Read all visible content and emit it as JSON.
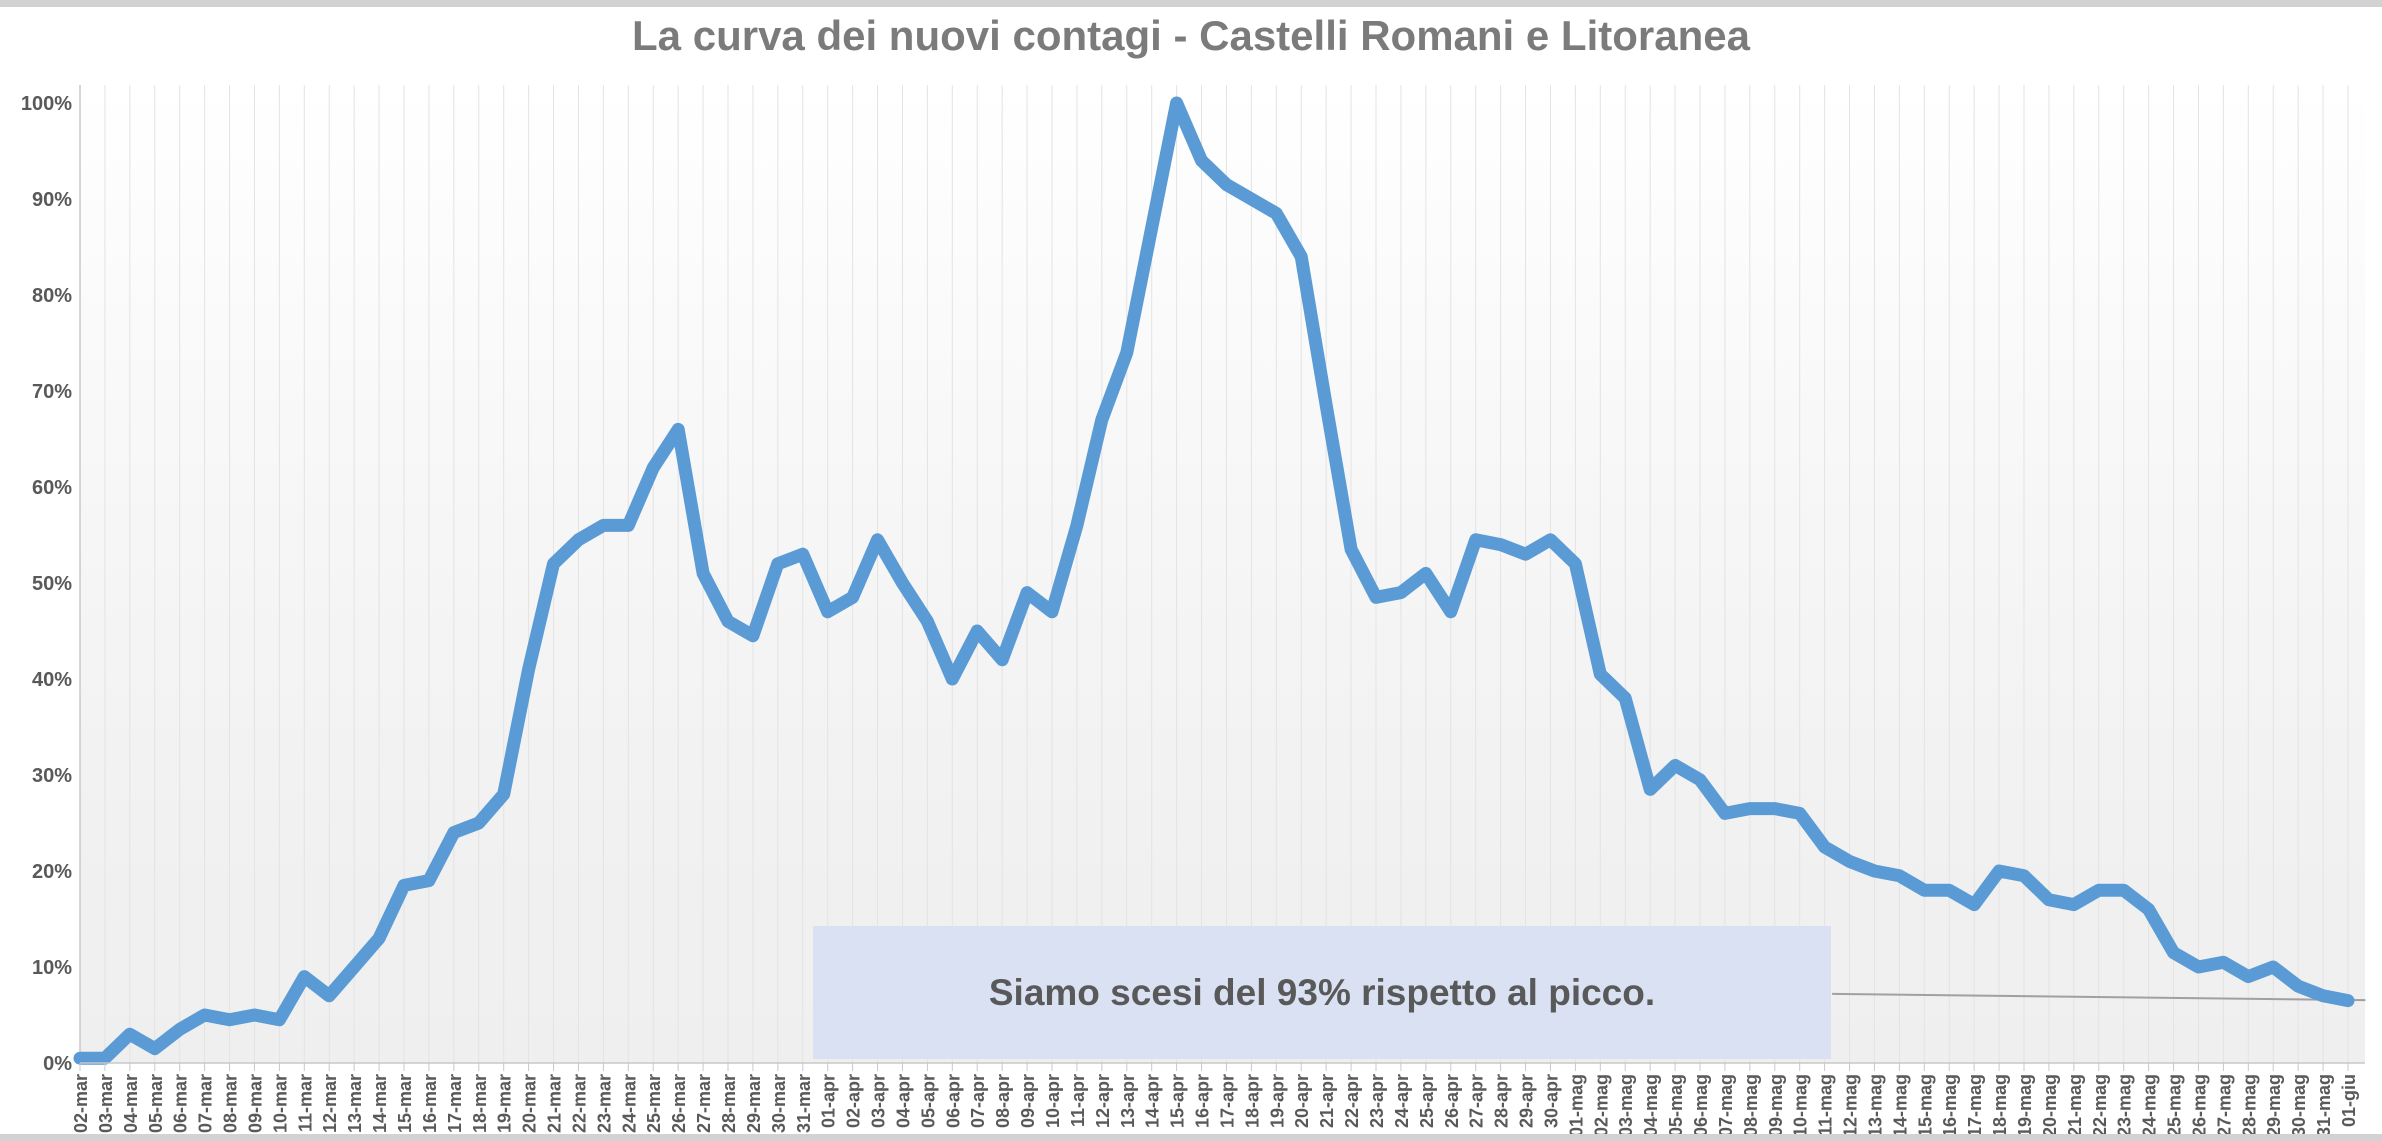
{
  "title": "La curva dei nuovi contagi - Castelli Romani e Litoranea",
  "annotation": {
    "text": "Siamo scesi del 93% rispetto al picco."
  },
  "chart_data": {
    "type": "line",
    "title": "La curva dei nuovi contagi - Castelli Romani e Litoranea",
    "xlabel": "",
    "ylabel": "",
    "ylim": [
      0,
      100
    ],
    "grid": "vertical-daily",
    "legend": "none",
    "y_ticks": [
      "0%",
      "10%",
      "20%",
      "30%",
      "40%",
      "50%",
      "60%",
      "70%",
      "80%",
      "90%",
      "100%"
    ],
    "categories": [
      "02-mar",
      "03-mar",
      "04-mar",
      "05-mar",
      "06-mar",
      "07-mar",
      "08-mar",
      "09-mar",
      "10-mar",
      "11-mar",
      "12-mar",
      "13-mar",
      "14-mar",
      "15-mar",
      "16-mar",
      "17-mar",
      "18-mar",
      "19-mar",
      "20-mar",
      "21-mar",
      "22-mar",
      "23-mar",
      "24-mar",
      "25-mar",
      "26-mar",
      "27-mar",
      "28-mar",
      "29-mar",
      "30-mar",
      "31-mar",
      "01-apr",
      "02-apr",
      "03-apr",
      "04-apr",
      "05-apr",
      "06-apr",
      "07-apr",
      "08-apr",
      "09-apr",
      "10-apr",
      "11-apr",
      "12-apr",
      "13-apr",
      "14-apr",
      "15-apr",
      "16-apr",
      "17-apr",
      "18-apr",
      "19-apr",
      "20-apr",
      "21-apr",
      "22-apr",
      "23-apr",
      "24-apr",
      "25-apr",
      "26-apr",
      "27-apr",
      "28-apr",
      "29-apr",
      "30-apr",
      "01-mag",
      "02-mag",
      "03-mag",
      "04-mag",
      "05-mag",
      "06-mag",
      "07-mag",
      "08-mag",
      "09-mag",
      "10-mag",
      "11-mag",
      "12-mag",
      "13-mag",
      "14-mag",
      "15-mag",
      "16-mag",
      "17-mag",
      "18-mag",
      "19-mag",
      "20-mag",
      "21-mag",
      "22-mag",
      "23-mag",
      "24-mag",
      "25-mag",
      "26-mag",
      "27-mag",
      "28-mag",
      "29-mag",
      "30-mag",
      "31-mag",
      "01-giu"
    ],
    "values": [
      0.5,
      0.5,
      3,
      1.5,
      3.5,
      5,
      4.5,
      5,
      4.5,
      9,
      7,
      10,
      13,
      18.5,
      19,
      24,
      25,
      28,
      41,
      52,
      54.5,
      56,
      56,
      62,
      66,
      51,
      46,
      44.5,
      52,
      53,
      47,
      48.5,
      54.5,
      50,
      46,
      40,
      45,
      42,
      49,
      47,
      56,
      67,
      74,
      87,
      100,
      94,
      91.5,
      90,
      88.5,
      84,
      68.5,
      53.5,
      48.5,
      49,
      51,
      47,
      54.5,
      54,
      53,
      54.5,
      52,
      40.5,
      38,
      28.5,
      31,
      29.5,
      26,
      26.5,
      26.5,
      26,
      22.5,
      21,
      20,
      19.5,
      18,
      18,
      16.5,
      20,
      19.5,
      17,
      16.5,
      18,
      18,
      16,
      11.5,
      10,
      10.5,
      9,
      10,
      8,
      7,
      6.5
    ],
    "trendline": {
      "x1_index": 70.3,
      "y1": 7.2,
      "x2_index": 91.7,
      "y2": 6.55,
      "color": "#a0a0a0"
    },
    "annotation": {
      "text": "Siamo scesi del 93% rispetto al picco.",
      "background": "#d9e1f2",
      "text_color": "#595959"
    },
    "colors": {
      "line": "#5b9bd5",
      "title": "#7b7b7b",
      "axis_labels": "#595959",
      "gridline": "#e3e3e3",
      "axis_line": "#c8c8c8",
      "plot_bg_top": "#ffffff",
      "plot_bg_bottom": "#efefef",
      "window_edge": "#d2d2d2"
    }
  }
}
